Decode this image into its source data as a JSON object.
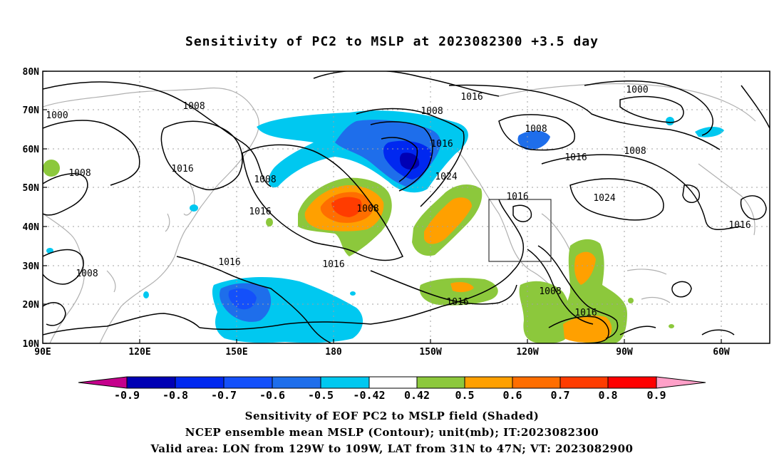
{
  "title": "Sensitivity of PC2 to MSLP at 2023082300 +3.5 day",
  "lat_labels": [
    "80N",
    "70N",
    "60N",
    "50N",
    "40N",
    "30N",
    "20N",
    "10N"
  ],
  "lon_labels": [
    "90E",
    "120E",
    "150E",
    "180",
    "150W",
    "120W",
    "90W",
    "60W"
  ],
  "contour_labels": [
    "1000",
    "1008",
    "1008",
    "1016",
    "1008",
    "1008",
    "1016",
    "1016",
    "1008",
    "1016",
    "1008",
    "1016",
    "1016",
    "1024",
    "1008",
    "1016",
    "1008",
    "1016",
    "1016",
    "1000",
    "1008",
    "1016",
    "1024",
    "1016"
  ],
  "colorbar": {
    "labels": [
      "-0.9",
      "-0.8",
      "-0.7",
      "-0.6",
      "-0.5",
      "-0.42",
      "0.42",
      "0.5",
      "0.6",
      "0.7",
      "0.8",
      "0.9"
    ],
    "colors": [
      "#c5008c",
      "#0000b4",
      "#0028f0",
      "#1450fa",
      "#1e6eeb",
      "#00c8f0",
      "#ffffff",
      "#8cc83c",
      "#ffa000",
      "#ff6e00",
      "#ff3c00",
      "#ff0000",
      "#ffa0c8"
    ]
  },
  "captions": [
    "Sensitivity of EOF PC2 to MSLP field (Shaded)",
    "NCEP ensemble mean MSLP (Contour); unit(mb); IT:2023082300",
    "Valid area: LON from 129W to 109W, LAT from 31N to 47N; VT: 2023082900"
  ]
}
